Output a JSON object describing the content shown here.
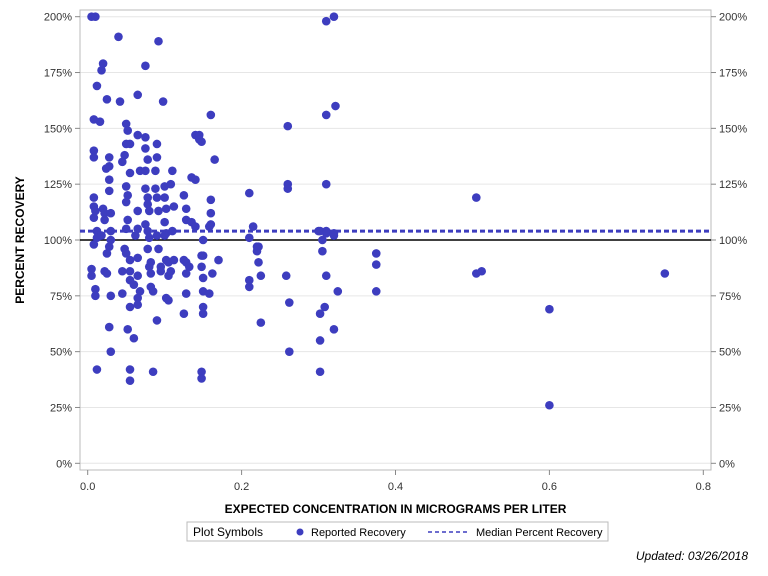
{
  "chart_data": {
    "type": "scatter",
    "xlabel": "EXPECTED CONCENTRATION IN MICROGRAMS PER LITER",
    "ylabel": "PERCENT RECOVERY",
    "xlim": [
      -0.01,
      0.81
    ],
    "ylim": [
      -3,
      203
    ],
    "x_ticks": [
      0.0,
      0.2,
      0.4,
      0.6,
      0.8
    ],
    "x_tick_labels": [
      "0.0",
      "0.2",
      "0.4",
      "0.6",
      "0.8"
    ],
    "y_ticks": [
      0,
      25,
      50,
      75,
      100,
      125,
      150,
      175,
      200
    ],
    "y_tick_labels": [
      "0%",
      "25%",
      "50%",
      "75%",
      "100%",
      "125%",
      "150%",
      "175%",
      "200%"
    ],
    "reference_line": {
      "y": 100,
      "color": "#000000"
    },
    "median_line": {
      "y": 104,
      "label": "Median Percent Recovery",
      "color": "#3d3dbf"
    },
    "marker_color": "#3d3dbf",
    "grid": true,
    "legend": {
      "title": "Plot Symbols",
      "position": "bottom",
      "entries": [
        "Reported Recovery",
        "Median Percent Recovery"
      ]
    },
    "series": [
      {
        "name": "Reported Recovery",
        "points": [
          [
            0.005,
            200
          ],
          [
            0.01,
            200
          ],
          [
            0.012,
            169
          ],
          [
            0.018,
            176
          ],
          [
            0.02,
            179
          ],
          [
            0.016,
            153
          ],
          [
            0.008,
            154
          ],
          [
            0.008,
            140
          ],
          [
            0.008,
            137
          ],
          [
            0.008,
            119
          ],
          [
            0.008,
            115
          ],
          [
            0.008,
            110
          ],
          [
            0.01,
            113
          ],
          [
            0.012,
            104
          ],
          [
            0.012,
            101
          ],
          [
            0.008,
            98
          ],
          [
            0.005,
            87
          ],
          [
            0.005,
            84
          ],
          [
            0.01,
            78
          ],
          [
            0.01,
            75
          ],
          [
            0.012,
            42
          ],
          [
            0.018,
            102
          ],
          [
            0.02,
            114
          ],
          [
            0.022,
            112
          ],
          [
            0.022,
            109
          ],
          [
            0.024,
            132
          ],
          [
            0.025,
            163
          ],
          [
            0.028,
            137
          ],
          [
            0.028,
            133
          ],
          [
            0.028,
            127
          ],
          [
            0.028,
            122
          ],
          [
            0.03,
            112
          ],
          [
            0.03,
            104
          ],
          [
            0.03,
            100
          ],
          [
            0.028,
            97
          ],
          [
            0.025,
            94
          ],
          [
            0.022,
            86
          ],
          [
            0.025,
            85
          ],
          [
            0.03,
            75
          ],
          [
            0.028,
            61
          ],
          [
            0.03,
            50
          ],
          [
            0.04,
            191
          ],
          [
            0.042,
            162
          ],
          [
            0.045,
            135
          ],
          [
            0.048,
            138
          ],
          [
            0.05,
            143
          ],
          [
            0.05,
            152
          ],
          [
            0.052,
            149
          ],
          [
            0.055,
            143
          ],
          [
            0.055,
            130
          ],
          [
            0.05,
            124
          ],
          [
            0.052,
            120
          ],
          [
            0.05,
            117
          ],
          [
            0.052,
            109
          ],
          [
            0.05,
            105
          ],
          [
            0.048,
            96
          ],
          [
            0.05,
            94
          ],
          [
            0.055,
            91
          ],
          [
            0.055,
            86
          ],
          [
            0.055,
            82
          ],
          [
            0.045,
            86
          ],
          [
            0.045,
            76
          ],
          [
            0.055,
            70
          ],
          [
            0.052,
            60
          ],
          [
            0.055,
            42
          ],
          [
            0.055,
            37
          ],
          [
            0.06,
            56
          ],
          [
            0.06,
            80
          ],
          [
            0.065,
            165
          ],
          [
            0.065,
            147
          ],
          [
            0.068,
            131
          ],
          [
            0.065,
            113
          ],
          [
            0.065,
            105
          ],
          [
            0.062,
            102
          ],
          [
            0.065,
            92
          ],
          [
            0.065,
            84
          ],
          [
            0.068,
            77
          ],
          [
            0.065,
            74
          ],
          [
            0.065,
            71
          ],
          [
            0.075,
            178
          ],
          [
            0.075,
            146
          ],
          [
            0.075,
            141
          ],
          [
            0.078,
            136
          ],
          [
            0.075,
            131
          ],
          [
            0.075,
            123
          ],
          [
            0.078,
            119
          ],
          [
            0.078,
            116
          ],
          [
            0.08,
            113
          ],
          [
            0.075,
            107
          ],
          [
            0.078,
            104
          ],
          [
            0.08,
            101
          ],
          [
            0.078,
            96
          ],
          [
            0.082,
            90
          ],
          [
            0.08,
            88
          ],
          [
            0.082,
            85
          ],
          [
            0.082,
            79
          ],
          [
            0.085,
            77
          ],
          [
            0.085,
            41
          ],
          [
            0.088,
            131
          ],
          [
            0.09,
            137
          ],
          [
            0.09,
            143
          ],
          [
            0.088,
            123
          ],
          [
            0.09,
            119
          ],
          [
            0.092,
            113
          ],
          [
            0.09,
            102
          ],
          [
            0.092,
            96
          ],
          [
            0.095,
            88
          ],
          [
            0.095,
            86
          ],
          [
            0.09,
            64
          ],
          [
            0.092,
            189
          ],
          [
            0.098,
            162
          ],
          [
            0.1,
            124
          ],
          [
            0.1,
            119
          ],
          [
            0.102,
            114
          ],
          [
            0.1,
            108
          ],
          [
            0.102,
            103
          ],
          [
            0.1,
            102
          ],
          [
            0.102,
            91
          ],
          [
            0.105,
            90
          ],
          [
            0.105,
            84
          ],
          [
            0.102,
            74
          ],
          [
            0.105,
            73
          ],
          [
            0.11,
            131
          ],
          [
            0.108,
            125
          ],
          [
            0.112,
            115
          ],
          [
            0.11,
            104
          ],
          [
            0.112,
            91
          ],
          [
            0.108,
            86
          ],
          [
            0.125,
            120
          ],
          [
            0.128,
            114
          ],
          [
            0.128,
            109
          ],
          [
            0.125,
            91
          ],
          [
            0.128,
            90
          ],
          [
            0.128,
            85
          ],
          [
            0.128,
            76
          ],
          [
            0.125,
            67
          ],
          [
            0.135,
            128
          ],
          [
            0.135,
            108
          ],
          [
            0.132,
            88
          ],
          [
            0.14,
            147
          ],
          [
            0.14,
            127
          ],
          [
            0.14,
            106
          ],
          [
            0.145,
            147
          ],
          [
            0.145,
            145
          ],
          [
            0.148,
            144
          ],
          [
            0.148,
            93
          ],
          [
            0.15,
            100
          ],
          [
            0.15,
            93
          ],
          [
            0.148,
            88
          ],
          [
            0.15,
            83
          ],
          [
            0.15,
            77
          ],
          [
            0.15,
            70
          ],
          [
            0.15,
            67
          ],
          [
            0.148,
            41
          ],
          [
            0.148,
            38
          ],
          [
            0.16,
            156
          ],
          [
            0.16,
            118
          ],
          [
            0.16,
            112
          ],
          [
            0.16,
            107
          ],
          [
            0.158,
            106
          ],
          [
            0.158,
            76
          ],
          [
            0.162,
            85
          ],
          [
            0.165,
            136
          ],
          [
            0.17,
            91
          ],
          [
            0.21,
            121
          ],
          [
            0.21,
            101
          ],
          [
            0.215,
            106
          ],
          [
            0.21,
            82
          ],
          [
            0.21,
            79
          ],
          [
            0.22,
            95
          ],
          [
            0.22,
            97
          ],
          [
            0.222,
            97
          ],
          [
            0.222,
            90
          ],
          [
            0.225,
            84
          ],
          [
            0.225,
            63
          ],
          [
            0.26,
            151
          ],
          [
            0.26,
            125
          ],
          [
            0.26,
            123
          ],
          [
            0.258,
            84
          ],
          [
            0.262,
            72
          ],
          [
            0.262,
            50
          ],
          [
            0.3,
            104
          ],
          [
            0.302,
            104
          ],
          [
            0.305,
            100
          ],
          [
            0.305,
            95
          ],
          [
            0.302,
            67
          ],
          [
            0.302,
            55
          ],
          [
            0.302,
            41
          ],
          [
            0.31,
            104
          ],
          [
            0.31,
            103
          ],
          [
            0.31,
            125
          ],
          [
            0.31,
            156
          ],
          [
            0.308,
            70
          ],
          [
            0.31,
            84
          ],
          [
            0.31,
            198
          ],
          [
            0.32,
            200
          ],
          [
            0.322,
            160
          ],
          [
            0.32,
            102
          ],
          [
            0.32,
            103
          ],
          [
            0.32,
            60
          ],
          [
            0.325,
            77
          ],
          [
            0.375,
            94
          ],
          [
            0.375,
            89
          ],
          [
            0.375,
            77
          ],
          [
            0.505,
            119
          ],
          [
            0.505,
            85
          ],
          [
            0.512,
            86
          ],
          [
            0.6,
            69
          ],
          [
            0.6,
            26
          ],
          [
            0.75,
            85
          ]
        ]
      }
    ]
  },
  "footnote": "Updated: 03/26/2018"
}
